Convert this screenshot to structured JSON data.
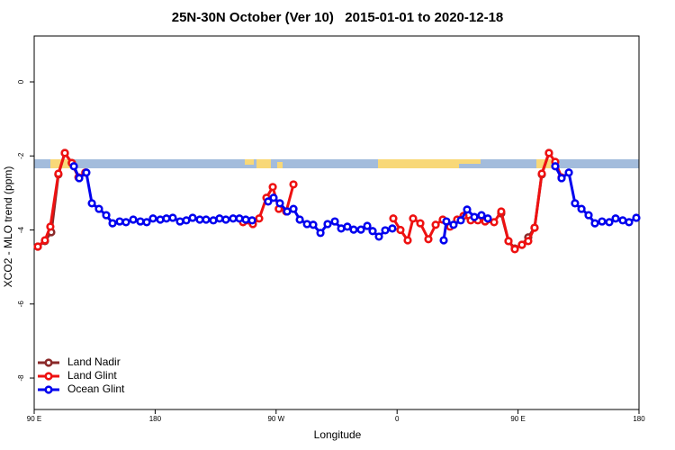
{
  "chart_data": {
    "type": "line",
    "title": "25N-30N October (Ver 10)   2015-01-01 to 2020-12-18",
    "xlabel": "Longitude",
    "ylabel": "XCO2 - MLO trend (ppm)",
    "xlim": [
      90,
      540
    ],
    "ylim": [
      -8.85,
      1.24
    ],
    "xticks": [
      {
        "value": 90,
        "label": "90 E"
      },
      180,
      {
        "value": 270,
        "label": "90 W"
      },
      {
        "value": 360,
        "label": "0"
      },
      {
        "value": 450,
        "label": "90 E"
      },
      {
        "value": 540,
        "label": "180"
      }
    ],
    "yticks": [
      0,
      -2,
      -4,
      -6,
      -8
    ],
    "legend": "bottom-left",
    "series": [
      {
        "name": "Land Nadir",
        "color": "#8b2a2a",
        "x": [
          92.7,
          98,
          102.7,
          108,
          112.8,
          118,
          123,
          null,
          437.5,
          442.9,
          447.6,
          452.9,
          457.6,
          462.3,
          467.7,
          473
        ],
        "values": [
          -4.45,
          -4.3,
          -4.06,
          -2.5,
          -1.92,
          -2.19,
          -2.58,
          null,
          -3.55,
          -4.3,
          -4.5,
          -4.4,
          -4.2,
          -3.94,
          -2.5,
          -1.92
        ]
      },
      {
        "name": "Land Glint",
        "color": "#ee1111",
        "x": [
          92.7,
          98,
          102,
          108,
          112.8,
          118,
          123,
          128,
          null,
          245.4,
          252.7,
          257.4,
          262.8,
          267.5,
          272,
          277.5,
          282.9,
          null,
          357.2,
          362.5,
          367.9,
          371.9,
          377.3,
          383.3,
          388.7,
          394,
          399.4,
          404.7,
          409.4,
          414.8,
          420.1,
          425.5,
          432.2,
          437.5,
          442.9,
          447.6,
          452.9,
          457.6,
          462.3,
          467.7,
          473,
          477.7,
          482.4
        ],
        "values": [
          -4.45,
          -4.28,
          -3.91,
          -2.48,
          -1.92,
          -2.19,
          -2.58,
          -2.45,
          null,
          -3.79,
          -3.84,
          -3.69,
          -3.13,
          -2.84,
          -3.43,
          -3.5,
          -2.77,
          null,
          -3.69,
          -4.0,
          -4.28,
          -3.69,
          -3.82,
          -4.25,
          -3.86,
          -3.72,
          -3.91,
          -3.72,
          -3.62,
          -3.74,
          -3.74,
          -3.77,
          -3.79,
          -3.5,
          -4.3,
          -4.52,
          -4.4,
          -4.3,
          -3.94,
          -2.48,
          -1.92,
          -2.16,
          -2.58
        ]
      },
      {
        "name": "Ocean Glint",
        "color": "#0000ee",
        "x": [
          119.5,
          123.5,
          128.8,
          132.9,
          138.2,
          143.6,
          148.3,
          153.6,
          158.3,
          163.7,
          169,
          173.7,
          178.4,
          183.8,
          188.4,
          193.1,
          198.5,
          203.2,
          207.9,
          213.2,
          217.9,
          223.3,
          227.9,
          232.6,
          238,
          242.7,
          247.4,
          252.1,
          null,
          264.1,
          268.1,
          272.8,
          278.2,
          282.9,
          287.6,
          293,
          297.6,
          303,
          308.3,
          313.7,
          318.4,
          323,
          327.7,
          333.1,
          337.8,
          341.8,
          346.5,
          351.2,
          356.5,
          null,
          394.7,
          396.7,
          402,
          407.4,
          412.1,
          417.5,
          422.8,
          427.5,
          null,
          477.7,
          482.4,
          487.8,
          492.4,
          497.2,
          502.5,
          507.2,
          512.5,
          517.9,
          522.6,
          527.9,
          532.6,
          538
        ],
        "values": [
          -2.28,
          -2.6,
          -2.45,
          -3.28,
          -3.43,
          -3.6,
          -3.82,
          -3.77,
          -3.79,
          -3.72,
          -3.77,
          -3.79,
          -3.69,
          -3.72,
          -3.69,
          -3.67,
          -3.77,
          -3.74,
          -3.67,
          -3.72,
          -3.72,
          -3.74,
          -3.69,
          -3.72,
          -3.69,
          -3.69,
          -3.72,
          -3.74,
          null,
          -3.23,
          -3.13,
          -3.28,
          -3.5,
          -3.43,
          -3.72,
          -3.84,
          -3.86,
          -4.08,
          -3.84,
          -3.77,
          -3.96,
          -3.91,
          -3.99,
          -3.99,
          -3.89,
          -4.03,
          -4.18,
          -4.01,
          -3.96,
          null,
          -4.28,
          -3.77,
          -3.86,
          -3.74,
          -3.45,
          -3.65,
          -3.6,
          -3.69,
          null,
          -2.28,
          -2.6,
          -2.45,
          -3.28,
          -3.43,
          -3.6,
          -3.82,
          -3.77,
          -3.79,
          -3.69,
          -3.74,
          -3.79,
          -3.67
        ]
      }
    ]
  }
}
